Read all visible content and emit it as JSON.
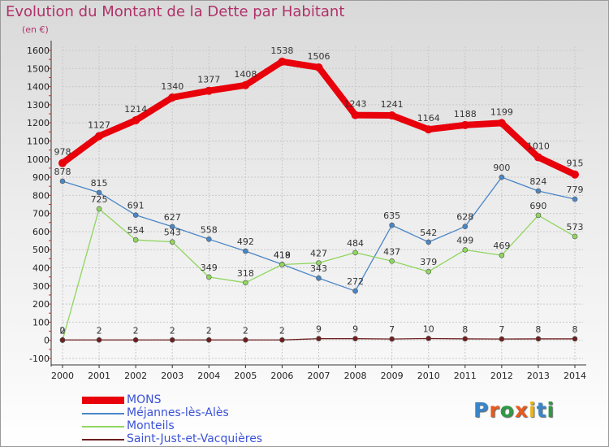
{
  "title": "Evolution du Montant de la Dette par Habitant",
  "unit": "(en €)",
  "logo": {
    "text": "Proxiti",
    "letter_colors": [
      "#3a84c8",
      "#e85a1e",
      "#2e9a44",
      "#e85a1e",
      "#e8b41e",
      "#3a84c8",
      "#2e9a44"
    ]
  },
  "chart_data": {
    "type": "line",
    "title": "Evolution du Montant de la Dette par Habitant",
    "ylabel": "(en €)",
    "xlabel": "",
    "x": [
      "2000",
      "2001",
      "2002",
      "2003",
      "2004",
      "2005",
      "2006",
      "2007",
      "2008",
      "2009",
      "2010",
      "2011",
      "2012",
      "2013",
      "2014"
    ],
    "ylim": [
      -100,
      1600
    ],
    "yticks": [
      -100,
      0,
      100,
      200,
      300,
      400,
      500,
      600,
      700,
      800,
      900,
      1000,
      1100,
      1200,
      1300,
      1400,
      1500,
      1600
    ],
    "grid": true,
    "legend": "bottom",
    "series": [
      {
        "name": "MONS",
        "color": "#e8000b",
        "emphasis": true,
        "values": [
          978,
          1127,
          1214,
          1340,
          1377,
          1408,
          1538,
          1506,
          1243,
          1241,
          1164,
          1188,
          1199,
          1010,
          915
        ]
      },
      {
        "name": "Méjannes-lès-Alès",
        "color": "#4a86c6",
        "emphasis": false,
        "values": [
          878,
          815,
          691,
          627,
          558,
          492,
          419,
          343,
          272,
          635,
          542,
          628,
          900,
          824,
          779
        ]
      },
      {
        "name": "Monteils",
        "color": "#8fd65e",
        "emphasis": false,
        "values": [
          0,
          725,
          554,
          543,
          349,
          318,
          418,
          427,
          484,
          437,
          379,
          499,
          469,
          690,
          573
        ]
      },
      {
        "name": "Saint-Just-et-Vacquières",
        "color": "#6e1f1f",
        "emphasis": false,
        "values": [
          2,
          2,
          2,
          2,
          2,
          2,
          2,
          9,
          9,
          7,
          10,
          8,
          7,
          8,
          8
        ]
      }
    ]
  }
}
